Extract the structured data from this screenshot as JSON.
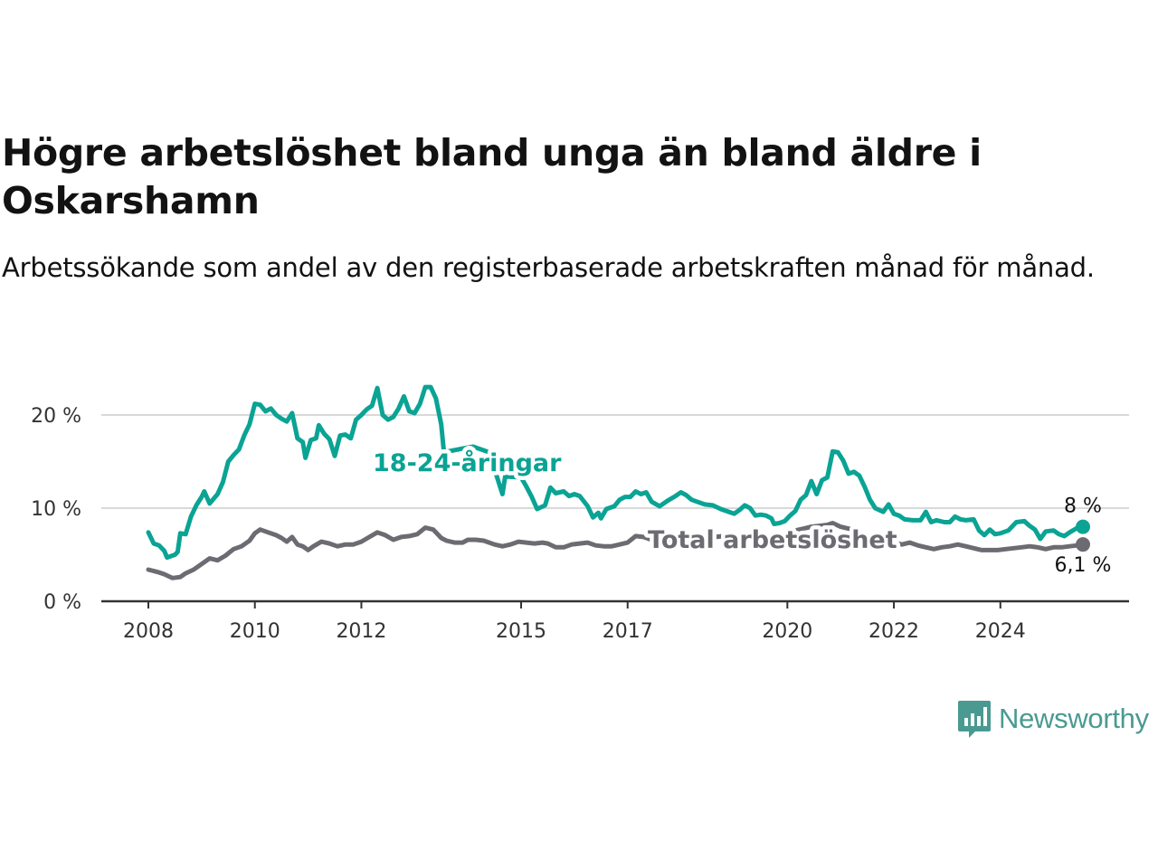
{
  "title": "Högre arbetslöshet bland unga än bland äldre i Oskarshamn",
  "subtitle": "Arbetssökande som andel av den registerbaserade arbetskraften månad för månad.",
  "brand": {
    "name": "Newsworthy",
    "icon": "newsworthy-logo-icon",
    "color": "#4a9a92"
  },
  "chart_data": {
    "type": "line",
    "xlim": [
      2008,
      2025
    ],
    "ylim": [
      0,
      24
    ],
    "y_ticks": [
      0,
      10,
      20
    ],
    "y_tick_labels": [
      "0 %",
      "10 %",
      "20 %"
    ],
    "x_ticks": [
      2008,
      2010,
      2012,
      2015,
      2017,
      2020,
      2022,
      2024
    ],
    "x_tick_labels": [
      "2008",
      "2010",
      "2012",
      "2015",
      "2017",
      "2020",
      "2022",
      "2024"
    ],
    "grid": "horizontal",
    "legend": "inline labels",
    "series": [
      {
        "name": "18-24-åringar",
        "color": "#0aa394",
        "end_label": "8 %",
        "points": [
          [
            2008.0,
            7.4
          ],
          [
            2008.1,
            6.2
          ],
          [
            2008.2,
            6.0
          ],
          [
            2008.3,
            5.4
          ],
          [
            2008.35,
            4.7
          ],
          [
            2008.5,
            5.0
          ],
          [
            2008.55,
            5.3
          ],
          [
            2008.6,
            7.3
          ],
          [
            2008.7,
            7.2
          ],
          [
            2008.8,
            9.1
          ],
          [
            2008.9,
            10.3
          ],
          [
            2009.0,
            11.2
          ],
          [
            2009.05,
            11.8
          ],
          [
            2009.15,
            10.5
          ],
          [
            2009.3,
            11.5
          ],
          [
            2009.4,
            12.8
          ],
          [
            2009.5,
            15.0
          ],
          [
            2009.6,
            15.7
          ],
          [
            2009.7,
            16.3
          ],
          [
            2009.8,
            17.8
          ],
          [
            2009.9,
            19.0
          ],
          [
            2010.0,
            21.2
          ],
          [
            2010.1,
            21.1
          ],
          [
            2010.2,
            20.4
          ],
          [
            2010.3,
            20.7
          ],
          [
            2010.4,
            20.0
          ],
          [
            2010.5,
            19.6
          ],
          [
            2010.6,
            19.3
          ],
          [
            2010.7,
            20.2
          ],
          [
            2010.8,
            17.5
          ],
          [
            2010.9,
            17.1
          ],
          [
            2010.95,
            15.4
          ],
          [
            2011.05,
            17.3
          ],
          [
            2011.15,
            17.5
          ],
          [
            2011.2,
            18.9
          ],
          [
            2011.3,
            18.0
          ],
          [
            2011.4,
            17.4
          ],
          [
            2011.5,
            15.6
          ],
          [
            2011.6,
            17.8
          ],
          [
            2011.7,
            17.9
          ],
          [
            2011.8,
            17.5
          ],
          [
            2011.9,
            19.5
          ],
          [
            2012.0,
            20.0
          ],
          [
            2012.1,
            20.6
          ],
          [
            2012.2,
            21.0
          ],
          [
            2012.3,
            22.9
          ],
          [
            2012.4,
            20.0
          ],
          [
            2012.5,
            19.5
          ],
          [
            2012.6,
            19.8
          ],
          [
            2012.7,
            20.7
          ],
          [
            2012.8,
            22.0
          ],
          [
            2012.9,
            20.4
          ],
          [
            2013.0,
            20.2
          ],
          [
            2013.1,
            21.2
          ],
          [
            2013.2,
            23.0
          ],
          [
            2013.3,
            23.0
          ],
          [
            2013.4,
            21.8
          ],
          [
            2013.5,
            19.0
          ],
          [
            2013.55,
            16.0
          ],
          [
            2013.9,
            16.4
          ],
          [
            2014.1,
            16.6
          ],
          [
            2014.4,
            16.0
          ],
          [
            2014.55,
            13.3
          ],
          [
            2014.65,
            11.5
          ],
          [
            2014.7,
            13.4
          ],
          [
            2015.0,
            13.3
          ],
          [
            2015.1,
            12.3
          ],
          [
            2015.2,
            11.2
          ],
          [
            2015.3,
            9.9
          ],
          [
            2015.45,
            10.3
          ],
          [
            2015.55,
            12.2
          ],
          [
            2015.65,
            11.6
          ],
          [
            2015.8,
            11.8
          ],
          [
            2015.9,
            11.3
          ],
          [
            2016.0,
            11.5
          ],
          [
            2016.1,
            11.3
          ],
          [
            2016.25,
            10.2
          ],
          [
            2016.35,
            9.0
          ],
          [
            2016.45,
            9.5
          ],
          [
            2016.5,
            8.9
          ],
          [
            2016.6,
            9.9
          ],
          [
            2016.75,
            10.2
          ],
          [
            2016.85,
            10.9
          ],
          [
            2016.95,
            11.2
          ],
          [
            2017.05,
            11.2
          ],
          [
            2017.15,
            11.8
          ],
          [
            2017.25,
            11.5
          ],
          [
            2017.35,
            11.7
          ],
          [
            2017.45,
            10.7
          ],
          [
            2017.6,
            10.2
          ],
          [
            2017.75,
            10.8
          ],
          [
            2017.9,
            11.3
          ],
          [
            2018.0,
            11.7
          ],
          [
            2018.1,
            11.4
          ],
          [
            2018.2,
            10.9
          ],
          [
            2018.3,
            10.7
          ],
          [
            2018.45,
            10.4
          ],
          [
            2018.6,
            10.3
          ],
          [
            2018.75,
            9.9
          ],
          [
            2018.9,
            9.6
          ],
          [
            2019.0,
            9.4
          ],
          [
            2019.1,
            9.8
          ],
          [
            2019.2,
            10.3
          ],
          [
            2019.3,
            10.0
          ],
          [
            2019.4,
            9.2
          ],
          [
            2019.5,
            9.3
          ],
          [
            2019.6,
            9.2
          ],
          [
            2019.7,
            8.9
          ],
          [
            2019.75,
            8.3
          ],
          [
            2019.85,
            8.4
          ],
          [
            2019.95,
            8.6
          ],
          [
            2020.05,
            9.2
          ],
          [
            2020.15,
            9.7
          ],
          [
            2020.25,
            10.9
          ],
          [
            2020.35,
            11.4
          ],
          [
            2020.45,
            12.9
          ],
          [
            2020.55,
            11.5
          ],
          [
            2020.65,
            13.0
          ],
          [
            2020.75,
            13.3
          ],
          [
            2020.85,
            16.1
          ],
          [
            2020.95,
            16.0
          ],
          [
            2021.05,
            15.1
          ],
          [
            2021.15,
            13.7
          ],
          [
            2021.25,
            13.9
          ],
          [
            2021.35,
            13.5
          ],
          [
            2021.45,
            12.3
          ],
          [
            2021.55,
            10.9
          ],
          [
            2021.65,
            10.0
          ],
          [
            2021.8,
            9.6
          ],
          [
            2021.9,
            10.4
          ],
          [
            2022.0,
            9.4
          ],
          [
            2022.1,
            9.2
          ],
          [
            2022.2,
            8.8
          ],
          [
            2022.35,
            8.7
          ],
          [
            2022.5,
            8.7
          ],
          [
            2022.6,
            9.6
          ],
          [
            2022.7,
            8.5
          ],
          [
            2022.8,
            8.7
          ],
          [
            2022.95,
            8.5
          ],
          [
            2023.05,
            8.5
          ],
          [
            2023.15,
            9.1
          ],
          [
            2023.25,
            8.8
          ],
          [
            2023.35,
            8.7
          ],
          [
            2023.5,
            8.8
          ],
          [
            2023.6,
            7.6
          ],
          [
            2023.7,
            7.1
          ],
          [
            2023.8,
            7.7
          ],
          [
            2023.9,
            7.2
          ],
          [
            2024.0,
            7.3
          ],
          [
            2024.15,
            7.6
          ],
          [
            2024.3,
            8.5
          ],
          [
            2024.45,
            8.6
          ],
          [
            2024.55,
            8.1
          ],
          [
            2024.65,
            7.7
          ],
          [
            2024.75,
            6.7
          ],
          [
            2024.85,
            7.5
          ],
          [
            2025.0,
            7.6
          ],
          [
            2025.1,
            7.2
          ],
          [
            2025.2,
            7.0
          ],
          [
            2025.3,
            7.4
          ],
          [
            2025.45,
            7.9
          ],
          [
            2025.55,
            8.0
          ]
        ]
      },
      {
        "name": "Total arbetslöshet",
        "color": "#6d6b72",
        "end_label": "6,1 %",
        "points": [
          [
            2008.0,
            3.4
          ],
          [
            2008.2,
            3.1
          ],
          [
            2008.3,
            2.9
          ],
          [
            2008.45,
            2.5
          ],
          [
            2008.6,
            2.6
          ],
          [
            2008.7,
            3.0
          ],
          [
            2008.85,
            3.4
          ],
          [
            2009.0,
            4.0
          ],
          [
            2009.15,
            4.6
          ],
          [
            2009.3,
            4.4
          ],
          [
            2009.45,
            4.9
          ],
          [
            2009.6,
            5.6
          ],
          [
            2009.75,
            5.9
          ],
          [
            2009.9,
            6.5
          ],
          [
            2010.0,
            7.3
          ],
          [
            2010.1,
            7.7
          ],
          [
            2010.25,
            7.4
          ],
          [
            2010.4,
            7.1
          ],
          [
            2010.5,
            6.8
          ],
          [
            2010.6,
            6.4
          ],
          [
            2010.7,
            6.9
          ],
          [
            2010.8,
            6.1
          ],
          [
            2010.9,
            5.9
          ],
          [
            2011.0,
            5.5
          ],
          [
            2011.1,
            5.9
          ],
          [
            2011.25,
            6.4
          ],
          [
            2011.4,
            6.2
          ],
          [
            2011.55,
            5.9
          ],
          [
            2011.7,
            6.1
          ],
          [
            2011.85,
            6.1
          ],
          [
            2012.0,
            6.4
          ],
          [
            2012.15,
            6.9
          ],
          [
            2012.3,
            7.4
          ],
          [
            2012.45,
            7.1
          ],
          [
            2012.6,
            6.6
          ],
          [
            2012.75,
            6.9
          ],
          [
            2012.9,
            7.0
          ],
          [
            2013.05,
            7.2
          ],
          [
            2013.2,
            7.9
          ],
          [
            2013.35,
            7.7
          ],
          [
            2013.5,
            6.8
          ],
          [
            2013.6,
            6.5
          ],
          [
            2013.75,
            6.3
          ],
          [
            2013.9,
            6.3
          ],
          [
            2014.0,
            6.6
          ],
          [
            2014.15,
            6.6
          ],
          [
            2014.3,
            6.5
          ],
          [
            2014.5,
            6.1
          ],
          [
            2014.65,
            5.9
          ],
          [
            2014.8,
            6.1
          ],
          [
            2014.95,
            6.4
          ],
          [
            2015.1,
            6.3
          ],
          [
            2015.25,
            6.2
          ],
          [
            2015.4,
            6.3
          ],
          [
            2015.5,
            6.2
          ],
          [
            2015.65,
            5.8
          ],
          [
            2015.8,
            5.8
          ],
          [
            2015.95,
            6.1
          ],
          [
            2016.1,
            6.2
          ],
          [
            2016.25,
            6.3
          ],
          [
            2016.4,
            6.0
          ],
          [
            2016.55,
            5.9
          ],
          [
            2016.7,
            5.9
          ],
          [
            2016.85,
            6.1
          ],
          [
            2017.0,
            6.3
          ],
          [
            2017.15,
            7.0
          ],
          [
            2017.3,
            6.9
          ],
          [
            2017.45,
            6.6
          ],
          [
            2017.6,
            6.5
          ],
          [
            2017.75,
            6.3
          ],
          [
            2017.9,
            6.3
          ],
          [
            2018.05,
            6.4
          ],
          [
            2018.2,
            6.6
          ],
          [
            2018.35,
            6.6
          ],
          [
            2018.5,
            6.7
          ],
          [
            2018.65,
            6.9
          ],
          [
            2018.8,
            7.0
          ],
          [
            2018.95,
            6.9
          ],
          [
            2019.1,
            6.8
          ],
          [
            2019.25,
            6.8
          ],
          [
            2019.4,
            6.9
          ],
          [
            2019.55,
            7.1
          ],
          [
            2019.7,
            7.0
          ],
          [
            2019.85,
            7.1
          ],
          [
            2020.0,
            7.3
          ],
          [
            2020.15,
            7.6
          ],
          [
            2020.3,
            7.8
          ],
          [
            2020.45,
            8.0
          ],
          [
            2020.6,
            8.1
          ],
          [
            2020.75,
            8.2
          ],
          [
            2020.85,
            8.4
          ],
          [
            2021.0,
            8.0
          ],
          [
            2021.15,
            7.8
          ],
          [
            2021.3,
            7.6
          ],
          [
            2021.45,
            7.2
          ],
          [
            2021.6,
            6.9
          ],
          [
            2021.75,
            6.4
          ],
          [
            2021.9,
            6.4
          ],
          [
            2022.0,
            6.3
          ],
          [
            2022.15,
            6.1
          ],
          [
            2022.3,
            6.3
          ],
          [
            2022.45,
            6.0
          ],
          [
            2022.6,
            5.8
          ],
          [
            2022.75,
            5.6
          ],
          [
            2022.9,
            5.8
          ],
          [
            2023.05,
            5.9
          ],
          [
            2023.2,
            6.1
          ],
          [
            2023.35,
            5.9
          ],
          [
            2023.5,
            5.7
          ],
          [
            2023.65,
            5.5
          ],
          [
            2023.8,
            5.5
          ],
          [
            2023.95,
            5.5
          ],
          [
            2024.1,
            5.6
          ],
          [
            2024.25,
            5.7
          ],
          [
            2024.4,
            5.8
          ],
          [
            2024.55,
            5.9
          ],
          [
            2024.7,
            5.8
          ],
          [
            2024.85,
            5.6
          ],
          [
            2025.0,
            5.8
          ],
          [
            2025.15,
            5.8
          ],
          [
            2025.3,
            5.9
          ],
          [
            2025.45,
            6.0
          ],
          [
            2025.55,
            6.1
          ]
        ]
      }
    ]
  }
}
